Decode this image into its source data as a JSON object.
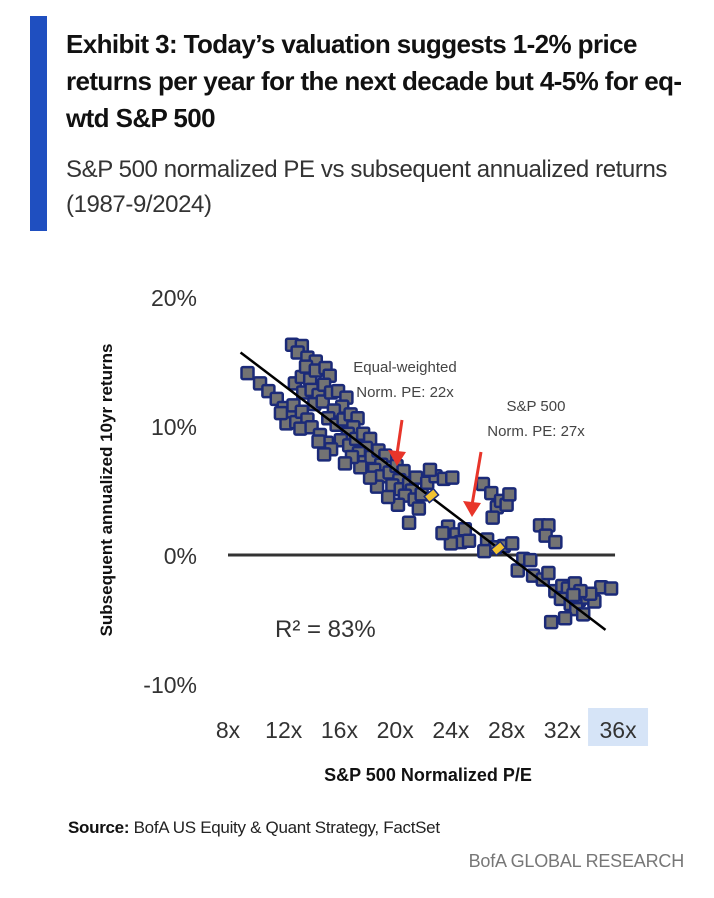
{
  "header": {
    "title": "Exhibit 3: Today’s valuation suggests 1-2% price returns per year for the next decade but 4-5% for eq-wtd S&P 500",
    "subtitle": "S&P 500 normalized PE vs subsequent annualized returns (1987-9/2024)"
  },
  "footer": {
    "source_label": "Source:",
    "source_text": "BofA US Equity & Quant Strategy, FactSet",
    "brand": "BofA GLOBAL RESEARCH"
  },
  "colors": {
    "accent": "#1f4fc0",
    "marker_fill": "#737373",
    "marker_border": "#1b2a78",
    "highlight": "#f2c230",
    "arrow": "#e8352a",
    "regression": "#000000",
    "zero_line": "#333333",
    "tick_highlight_bg": "#d6e4f7"
  },
  "chart_data": {
    "type": "scatter",
    "title": "S&P 500 normalized PE vs subsequent annualized returns (1987-9/2024)",
    "xlabel": "S&P 500 Normalized P/E",
    "ylabel": "Subsequent annualized 10yr returns",
    "xlim": [
      8,
      36
    ],
    "ylim": [
      -10,
      20
    ],
    "x_ticks": [
      "8x",
      "12x",
      "16x",
      "20x",
      "24x",
      "28x",
      "32x",
      "36x"
    ],
    "x_tick_values": [
      8,
      12,
      16,
      20,
      24,
      28,
      32,
      36
    ],
    "y_ticks": [
      "20%",
      "10%",
      "0%",
      "-10%"
    ],
    "y_tick_values": [
      20,
      10,
      0,
      -10
    ],
    "highlighted_x_tick": "36x",
    "grid": false,
    "zero_line": true,
    "r_squared_label": "R² = 83%",
    "regression": {
      "x": [
        8.9,
        35.1
      ],
      "y": [
        15.7,
        -5.8
      ]
    },
    "annotations": [
      {
        "line1": "Equal-weighted",
        "line2": "Norm. PE: 22x",
        "x": 22.6,
        "y": 4.6
      },
      {
        "line1": "S&P 500",
        "line2": "Norm. PE: 27x",
        "x": 27.4,
        "y": 0.5
      }
    ],
    "highlight_points": [
      {
        "name": "Equal-weighted",
        "x": 22.6,
        "y": 4.6
      },
      {
        "name": "S&P 500",
        "x": 27.4,
        "y": 0.5
      }
    ],
    "series": [
      {
        "name": "Historical observations",
        "points": [
          [
            9.4,
            14.1
          ],
          [
            10.3,
            13.3
          ],
          [
            10.9,
            12.7
          ],
          [
            11.5,
            12.1
          ],
          [
            12.0,
            11.4
          ],
          [
            12.5,
            10.8
          ],
          [
            12.2,
            10.2
          ],
          [
            12.9,
            10.3
          ],
          [
            11.8,
            11.0
          ],
          [
            12.7,
            11.6
          ],
          [
            13.3,
            11.1
          ],
          [
            13.7,
            10.5
          ],
          [
            13.2,
            9.8
          ],
          [
            14.0,
            9.9
          ],
          [
            14.6,
            9.3
          ],
          [
            15.1,
            8.7
          ],
          [
            12.8,
            13.3
          ],
          [
            13.3,
            13.8
          ],
          [
            13.9,
            13.6
          ],
          [
            13.4,
            12.6
          ],
          [
            14.0,
            12.8
          ],
          [
            14.5,
            12.4
          ],
          [
            14.2,
            11.7
          ],
          [
            14.8,
            11.9
          ],
          [
            12.6,
            16.3
          ],
          [
            13.3,
            16.2
          ],
          [
            13.0,
            15.7
          ],
          [
            13.7,
            15.3
          ],
          [
            14.3,
            15.0
          ],
          [
            13.6,
            14.6
          ],
          [
            14.3,
            14.3
          ],
          [
            15.0,
            14.5
          ],
          [
            15.3,
            13.9
          ],
          [
            14.9,
            13.2
          ],
          [
            15.4,
            12.6
          ],
          [
            15.9,
            12.7
          ],
          [
            16.5,
            12.2
          ],
          [
            16.2,
            11.5
          ],
          [
            15.6,
            11.2
          ],
          [
            15.2,
            10.6
          ],
          [
            15.8,
            10.1
          ],
          [
            16.3,
            10.5
          ],
          [
            16.8,
            10.9
          ],
          [
            17.3,
            10.6
          ],
          [
            17.0,
            9.9
          ],
          [
            16.6,
            9.4
          ],
          [
            16.1,
            8.9
          ],
          [
            16.7,
            8.5
          ],
          [
            17.2,
            9.0
          ],
          [
            17.7,
            9.4
          ],
          [
            18.2,
            9.0
          ],
          [
            17.9,
            8.3
          ],
          [
            17.4,
            7.9
          ],
          [
            17.8,
            7.2
          ],
          [
            18.3,
            7.6
          ],
          [
            18.8,
            8.1
          ],
          [
            19.3,
            7.7
          ],
          [
            19.0,
            7.0
          ],
          [
            18.5,
            6.6
          ],
          [
            19.0,
            6.1
          ],
          [
            19.6,
            6.4
          ],
          [
            20.1,
            6.9
          ],
          [
            20.6,
            6.5
          ],
          [
            20.3,
            5.8
          ],
          [
            19.8,
            5.4
          ],
          [
            20.4,
            5.1
          ],
          [
            21.0,
            5.5
          ],
          [
            21.5,
            6.0
          ],
          [
            21.2,
            5.0
          ],
          [
            20.7,
            4.6
          ],
          [
            21.4,
            4.3
          ],
          [
            21.9,
            4.7
          ],
          [
            22.3,
            5.6
          ],
          [
            22.9,
            6.1
          ],
          [
            23.5,
            5.9
          ],
          [
            24.1,
            6.0
          ],
          [
            22.5,
            6.6
          ],
          [
            21.7,
            3.6
          ],
          [
            20.2,
            3.9
          ],
          [
            19.5,
            4.5
          ],
          [
            18.7,
            5.3
          ],
          [
            18.2,
            6.0
          ],
          [
            17.5,
            6.8
          ],
          [
            16.9,
            7.6
          ],
          [
            16.4,
            7.1
          ],
          [
            15.4,
            8.2
          ],
          [
            14.9,
            7.8
          ],
          [
            14.5,
            8.8
          ],
          [
            21.0,
            2.5
          ],
          [
            23.8,
            2.2
          ],
          [
            24.4,
            1.6
          ],
          [
            25.0,
            2.0
          ],
          [
            24.7,
            1.0
          ],
          [
            25.3,
            1.1
          ],
          [
            24.0,
            0.9
          ],
          [
            23.4,
            1.7
          ],
          [
            26.3,
            5.5
          ],
          [
            26.9,
            4.8
          ],
          [
            27.3,
            3.7
          ],
          [
            27.6,
            4.2
          ],
          [
            28.0,
            3.9
          ],
          [
            28.2,
            4.7
          ],
          [
            26.6,
            1.2
          ],
          [
            27.2,
            0.6
          ],
          [
            27.0,
            2.9
          ],
          [
            26.4,
            0.3
          ],
          [
            27.8,
            0.7
          ],
          [
            28.4,
            0.9
          ],
          [
            30.4,
            2.3
          ],
          [
            31.0,
            2.3
          ],
          [
            30.8,
            1.5
          ],
          [
            31.5,
            1.0
          ],
          [
            28.8,
            -1.2
          ],
          [
            29.2,
            -0.3
          ],
          [
            29.7,
            -0.4
          ],
          [
            29.9,
            -1.6
          ],
          [
            31.5,
            -2.8
          ],
          [
            32.0,
            -2.4
          ],
          [
            32.4,
            -2.6
          ],
          [
            32.9,
            -2.2
          ],
          [
            31.9,
            -3.4
          ],
          [
            32.6,
            -3.8
          ],
          [
            33.2,
            -3.5
          ],
          [
            33.8,
            -3.3
          ],
          [
            34.3,
            -3.6
          ],
          [
            34.8,
            -2.5
          ],
          [
            35.5,
            -2.6
          ],
          [
            33.0,
            -4.2
          ],
          [
            33.5,
            -4.6
          ],
          [
            32.2,
            -4.9
          ],
          [
            31.2,
            -5.2
          ],
          [
            34.0,
            -3.0
          ],
          [
            33.3,
            -2.8
          ],
          [
            32.8,
            -3.1
          ],
          [
            30.6,
            -1.9
          ],
          [
            31.0,
            -1.4
          ]
        ]
      }
    ]
  }
}
